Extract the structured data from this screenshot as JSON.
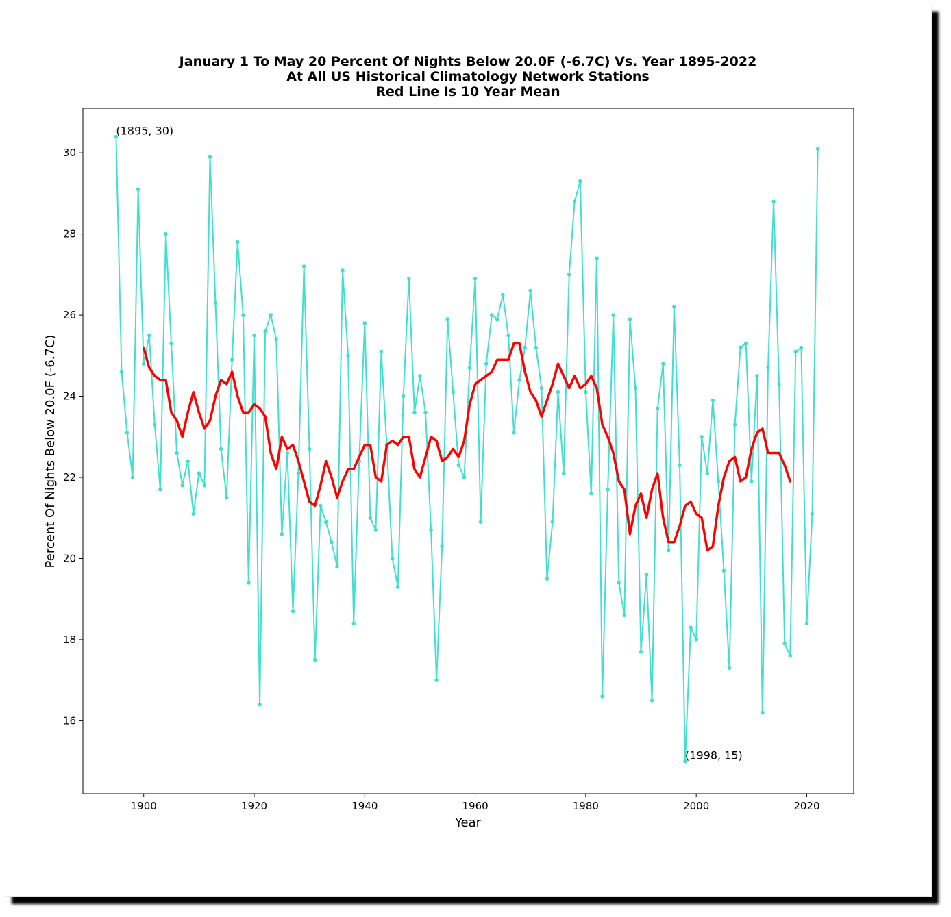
{
  "colors": {
    "raw": "#40e0d0",
    "mean": "#ff0000",
    "background": "#ffffff",
    "shadow": "#000000"
  },
  "chart_data": {
    "type": "line",
    "title": "January 1 To May 20 Percent Of Nights Below 20.0F (-6.7C) Vs. Year 1895-2022",
    "subtitle_lines": [
      "At All US Historical Climatology Network Stations",
      "Red Line Is 10 Year Mean"
    ],
    "xlabel": "Year",
    "ylabel": "Percent Of Nights Below 20.0F (-6.7C)",
    "xlim": [
      1889,
      2028.5
    ],
    "ylim": [
      14.2,
      31.1
    ],
    "x_ticks": [
      1900,
      1920,
      1940,
      1960,
      1980,
      2000,
      2020
    ],
    "y_ticks": [
      16,
      18,
      20,
      22,
      24,
      26,
      28,
      30
    ],
    "grid": false,
    "legend": "none",
    "series": [
      {
        "color": "#40e0d0",
        "marker": "circle",
        "x_start": 1895,
        "values": [
          30.4,
          24.6,
          23.1,
          22.0,
          29.1,
          24.8,
          25.5,
          23.3,
          21.7,
          28.0,
          25.3,
          22.6,
          21.8,
          22.4,
          21.1,
          22.1,
          21.8,
          29.9,
          26.3,
          22.7,
          21.5,
          24.9,
          27.8,
          26.0,
          19.4,
          25.5,
          16.4,
          25.6,
          26.0,
          25.4,
          20.6,
          22.6,
          18.7,
          22.1,
          27.2,
          22.7,
          17.5,
          21.3,
          20.9,
          20.4,
          19.8,
          27.1,
          25.0,
          18.4,
          22.4,
          25.8,
          21.0,
          20.7,
          25.1,
          22.8,
          20.0,
          19.3,
          24.0,
          26.9,
          23.6,
          24.5,
          23.6,
          20.7,
          17.0,
          20.3,
          25.9,
          24.1,
          22.3,
          22.0,
          24.7,
          26.9,
          20.9,
          24.8,
          26.0,
          25.9,
          26.5,
          25.5,
          23.1,
          24.4,
          25.2,
          26.6,
          25.2,
          24.2,
          19.5,
          20.9,
          24.1,
          22.1,
          27.0,
          28.8,
          29.3,
          24.1,
          21.6,
          27.4,
          16.6,
          21.7,
          26.0,
          19.4,
          18.6,
          25.9,
          24.2,
          17.7,
          19.6,
          16.5,
          23.7,
          24.8,
          20.2,
          26.2,
          22.3,
          15.0,
          18.3,
          18.0,
          23.0,
          22.1,
          23.9,
          21.9,
          19.7,
          17.3,
          23.3,
          25.2,
          25.3,
          21.9,
          24.5,
          16.2,
          24.7,
          28.8,
          24.3,
          17.9,
          17.6,
          25.1,
          25.2,
          18.4,
          21.1,
          30.1
        ]
      },
      {
        "color": "#ff0000",
        "marker": "none",
        "x_start": 1900,
        "values": [
          25.2,
          24.7,
          24.5,
          24.4,
          24.4,
          23.6,
          23.4,
          23.0,
          23.6,
          24.1,
          23.6,
          23.2,
          23.4,
          24.0,
          24.4,
          24.3,
          24.6,
          24.0,
          23.6,
          23.6,
          23.8,
          23.7,
          23.5,
          22.6,
          22.2,
          23.0,
          22.7,
          22.8,
          22.4,
          21.9,
          21.4,
          21.3,
          21.8,
          22.4,
          22.0,
          21.5,
          21.9,
          22.2,
          22.2,
          22.5,
          22.8,
          22.8,
          22.0,
          21.9,
          22.8,
          22.9,
          22.8,
          23.0,
          23.0,
          22.2,
          22.0,
          22.5,
          23.0,
          22.9,
          22.4,
          22.5,
          22.7,
          22.5,
          22.9,
          23.8,
          24.3,
          24.4,
          24.5,
          24.6,
          24.9,
          24.9,
          24.9,
          25.3,
          25.3,
          24.6,
          24.1,
          23.9,
          23.5,
          23.9,
          24.3,
          24.8,
          24.5,
          24.2,
          24.5,
          24.2,
          24.3,
          24.5,
          24.2,
          23.3,
          23.0,
          22.6,
          21.9,
          21.7,
          20.6,
          21.3,
          21.6,
          21.0,
          21.7,
          22.1,
          21.0,
          20.4,
          20.4,
          20.8,
          21.3,
          21.4,
          21.1,
          21.0,
          20.2,
          20.3,
          21.3,
          22.0,
          22.4,
          22.5,
          21.9,
          22.0,
          22.7,
          23.1,
          23.2,
          22.6,
          22.6,
          22.6,
          22.3,
          21.9
        ]
      }
    ],
    "annotations": [
      {
        "x": 1895,
        "y": 30.4,
        "text": "(1895, 30)"
      },
      {
        "x": 1998,
        "y": 15.0,
        "text": "(1998, 15)"
      }
    ]
  }
}
